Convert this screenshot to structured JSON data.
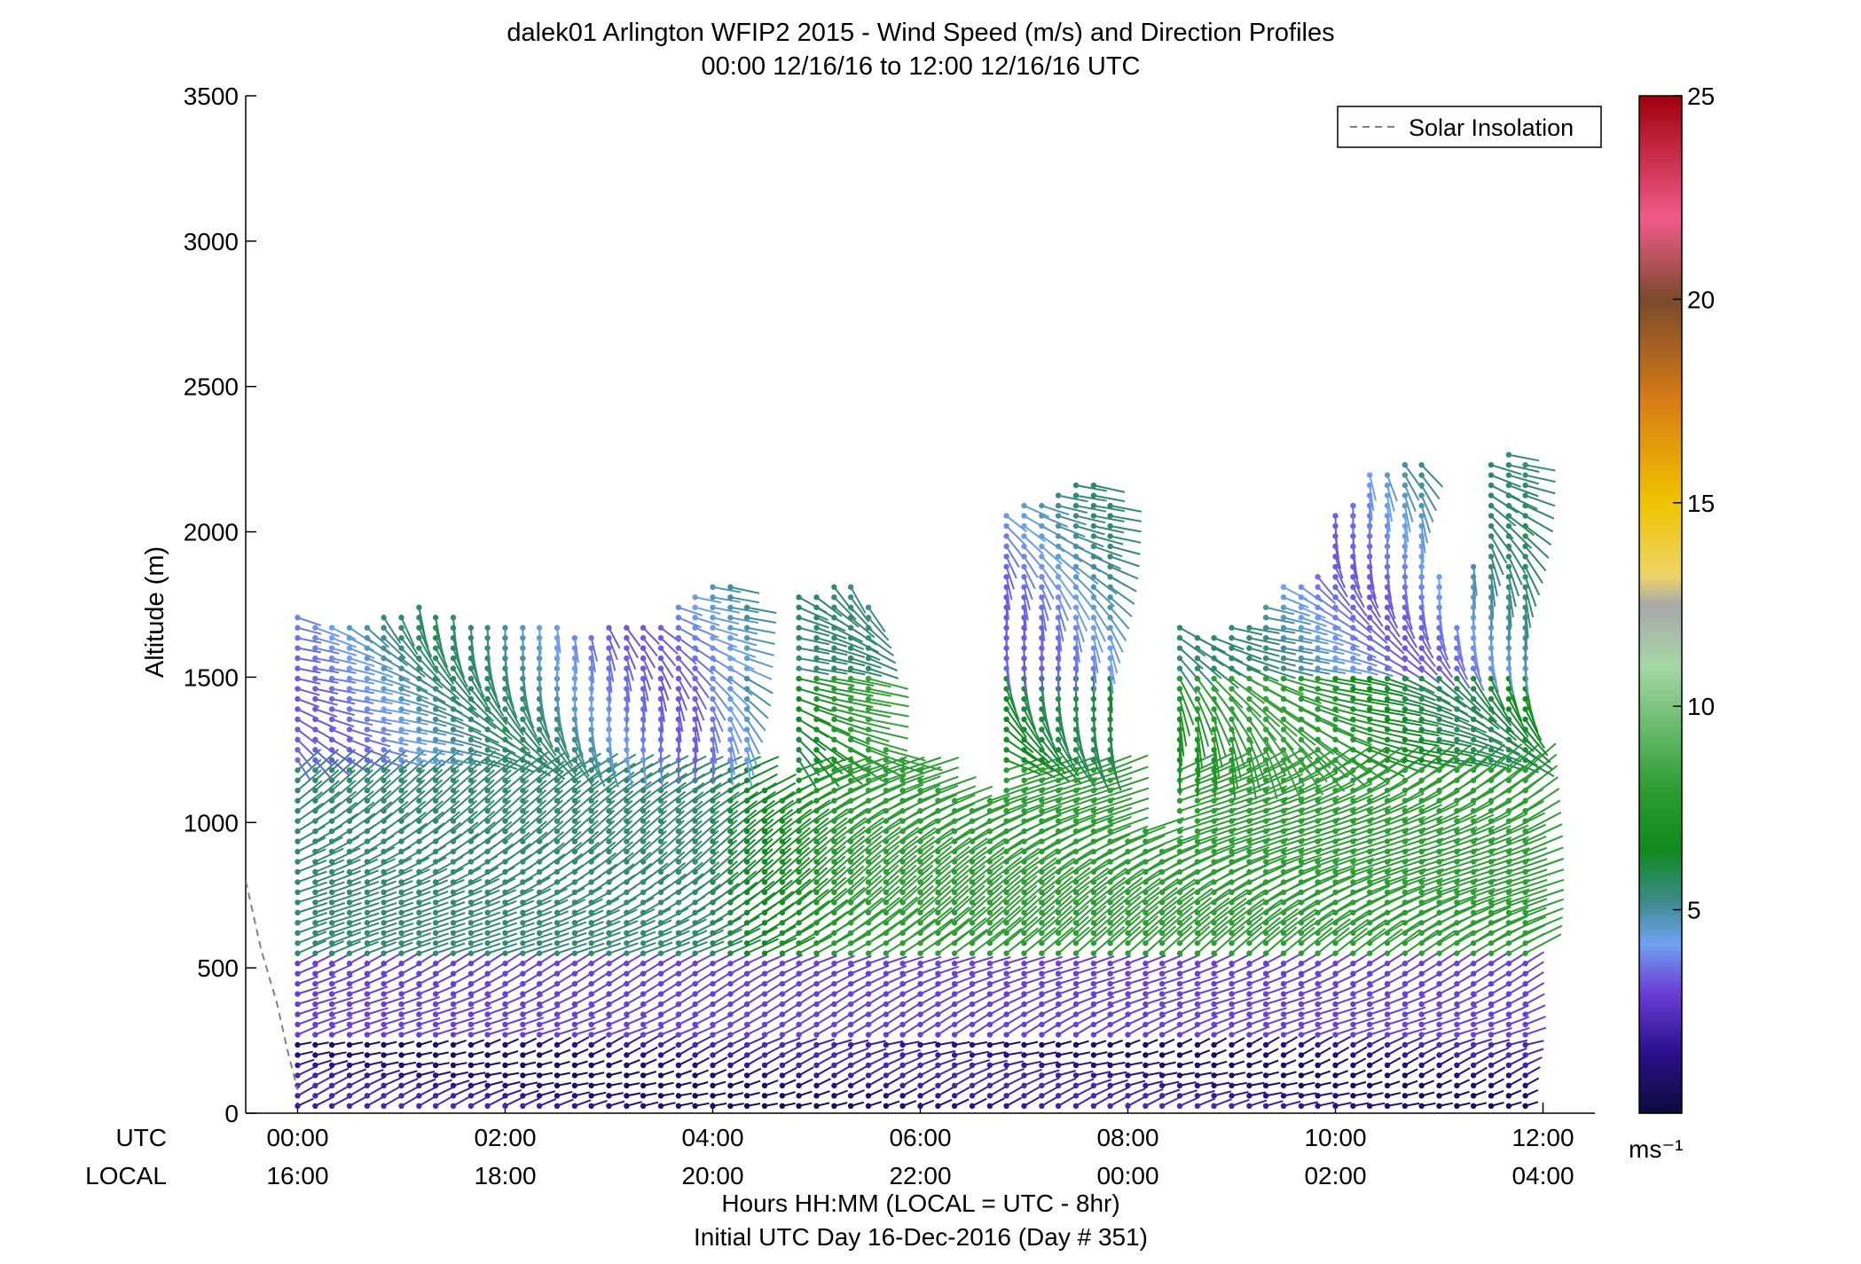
{
  "chart_data": {
    "type": "scatter",
    "title": "dalek01 Arlington WFIP2 2015 - Wind Speed (m/s) and Direction Profiles",
    "subtitle": "00:00 12/16/16 to 12:00 12/16/16  UTC",
    "ylabel": "Altitude (m)",
    "ylim": [
      0,
      3500
    ],
    "yticks": [
      "0",
      "500",
      "1000",
      "1500",
      "2000",
      "2500",
      "3000",
      "3500"
    ],
    "xlim_hours": [
      -0.5,
      12.5
    ],
    "x_axis_label_utc": "UTC",
    "x_axis_label_local": "LOCAL",
    "xticks_utc": [
      "00:00",
      "02:00",
      "04:00",
      "06:00",
      "08:00",
      "10:00",
      "12:00"
    ],
    "xticks_local": [
      "16:00",
      "18:00",
      "20:00",
      "22:00",
      "00:00",
      "02:00",
      "04:00"
    ],
    "xlabel": "Hours HH:MM  (LOCAL = UTC - 8hr)",
    "xlabel2": "Initial UTC Day 16-Dec-2016 (Day # 351)",
    "legend": {
      "label": "Solar Insolation",
      "placement": "top-right",
      "style": "dashed",
      "color": "#808080"
    },
    "solar_insolation": {
      "hours": [
        -0.5,
        -0.35,
        -0.2,
        -0.1,
        0.0
      ],
      "altitude": [
        800,
        560,
        380,
        220,
        80
      ]
    },
    "colorbar": {
      "range": [
        0,
        25
      ],
      "ticks": [
        "5",
        "10",
        "15",
        "20",
        "25"
      ],
      "unit": "ms⁻¹",
      "colormap": [
        {
          "v": 0,
          "c": "#0b0c3a"
        },
        {
          "v": 1.5,
          "c": "#2a0e8a"
        },
        {
          "v": 3,
          "c": "#6a3fd8"
        },
        {
          "v": 4.2,
          "c": "#6fa3f0"
        },
        {
          "v": 5.2,
          "c": "#3e8a8c"
        },
        {
          "v": 6.5,
          "c": "#0f8a1c"
        },
        {
          "v": 8,
          "c": "#2d9d34"
        },
        {
          "v": 11,
          "c": "#a6d8a6"
        },
        {
          "v": 12.5,
          "c": "#a8a8a8"
        },
        {
          "v": 13.2,
          "c": "#ecd46a"
        },
        {
          "v": 15,
          "c": "#f0c400"
        },
        {
          "v": 17.5,
          "c": "#d87d14"
        },
        {
          "v": 20,
          "c": "#7a4a2d"
        },
        {
          "v": 22,
          "c": "#f25b8a"
        },
        {
          "v": 25,
          "c": "#a0000c"
        }
      ]
    },
    "profile_hours": [
      0.0,
      0.17,
      0.33,
      0.5,
      0.67,
      0.83,
      1.0,
      1.17,
      1.33,
      1.5,
      1.67,
      1.83,
      2.0,
      2.17,
      2.33,
      2.5,
      2.67,
      2.83,
      3.0,
      3.17,
      3.33,
      3.5,
      3.67,
      3.83,
      4.0,
      4.17,
      4.33,
      4.5,
      4.67,
      4.83,
      5.0,
      5.17,
      5.33,
      5.5,
      5.67,
      5.83,
      6.0,
      6.17,
      6.33,
      6.5,
      6.67,
      6.83,
      7.0,
      7.17,
      7.33,
      7.5,
      7.67,
      7.83,
      8.0,
      8.17,
      8.33,
      8.5,
      8.67,
      8.83,
      9.0,
      9.17,
      9.33,
      9.5,
      9.67,
      9.83,
      10.0,
      10.17,
      10.33,
      10.5,
      10.67,
      10.83,
      11.0,
      11.17,
      11.33,
      11.5,
      11.67,
      11.83
    ],
    "profile_top_altitude": [
      1720,
      1700,
      1700,
      1700,
      1700,
      1720,
      1720,
      1740,
      1720,
      1720,
      1700,
      1700,
      1700,
      1700,
      1680,
      1680,
      1660,
      1660,
      1700,
      1700,
      1700,
      1700,
      1740,
      1800,
      1820,
      1840,
      1760,
      1120,
      1100,
      1780,
      1800,
      1820,
      1820,
      1760,
      1280,
      1220,
      1180,
      1120,
      1080,
      1060,
      1080,
      2060,
      2100,
      2120,
      2140,
      2160,
      2180,
      2100,
      960,
      1000,
      900,
      1700,
      1660,
      1640,
      1680,
      1700,
      1760,
      1820,
      1840,
      1860,
      2080,
      2120,
      2200,
      2220,
      2260,
      2260,
      1860,
      1680,
      1880,
      2240,
      2280,
      2260
    ],
    "regime_layers": [
      {
        "layer": "surface",
        "alt_from": 0,
        "alt_to": 250,
        "speed_ms": 1.5
      },
      {
        "layer": "lower",
        "alt_from": 250,
        "alt_to": 550,
        "speed_ms": 3.0
      },
      {
        "layer": "middle",
        "alt_from": 550,
        "alt_to": 1200,
        "speed_ms": 5.5
      },
      {
        "layer": "upper",
        "alt_from": 1200,
        "alt_to": 2300,
        "speed_ms": 4.5
      }
    ]
  }
}
